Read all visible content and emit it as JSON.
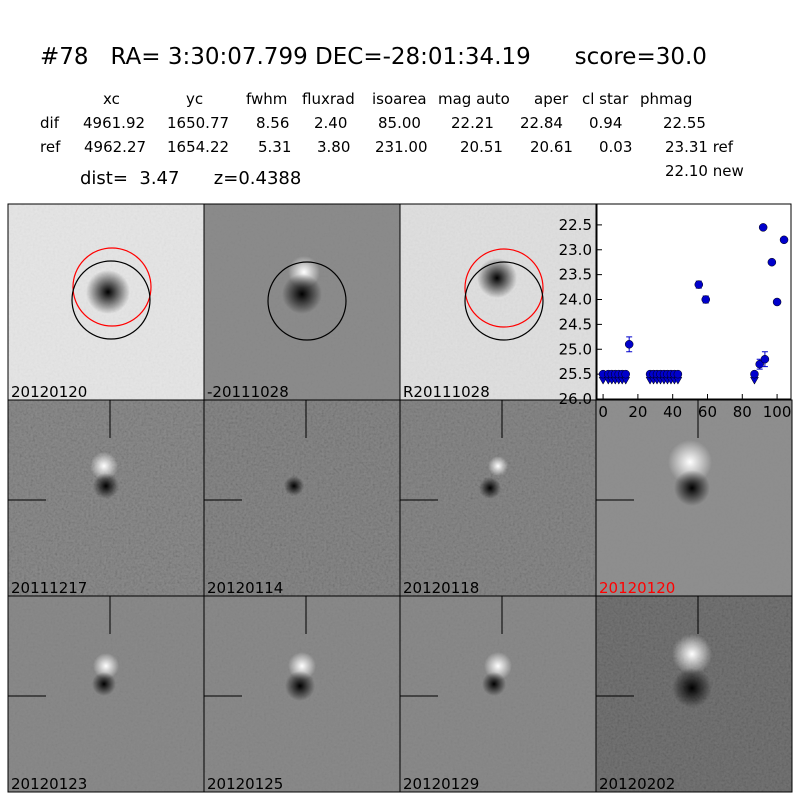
{
  "header": {
    "title": "#78   RA= 3:30:07.799 DEC=-28:01:34.19      score=30.0"
  },
  "table": {
    "columns": [
      "xc",
      "yc",
      "fwhm",
      "fluxrad",
      "isoarea",
      "mag auto",
      "aper",
      "cl star",
      "phmag"
    ],
    "rows": [
      {
        "label": "dif",
        "cells": [
          "4961.92",
          "1650.77",
          "8.56",
          "2.40",
          "85.00",
          "22.21",
          "22.84",
          "0.94",
          "22.55"
        ]
      },
      {
        "label": "ref",
        "cells": [
          "4962.27",
          "1654.22",
          "5.31",
          "3.80",
          "231.00",
          "20.51",
          "20.61",
          "0.03",
          "23.31 ref"
        ]
      }
    ],
    "note": "22.10 new"
  },
  "summary": "dist=  3.47      z=0.4388",
  "panels": [
    {
      "label": "20120120"
    },
    {
      "label": "-20111028"
    },
    {
      "label": "R20111028"
    },
    {
      "label": "20111217"
    },
    {
      "label": "20120114"
    },
    {
      "label": "20120118"
    },
    {
      "label": "20120120",
      "color": "#ff0000"
    },
    {
      "label": "20120123"
    },
    {
      "label": "20120125"
    },
    {
      "label": "20120129"
    },
    {
      "label": "20120202"
    }
  ],
  "chart_data": {
    "type": "scatter",
    "xlim": [
      -3.5,
      108
    ],
    "ylim": [
      22.08,
      26.0
    ],
    "y_inverted": true,
    "xticks": [
      0,
      20,
      40,
      60,
      80,
      100
    ],
    "yticks": [
      22.5,
      {
        "value": 23,
        "label": "23.0"
      },
      23.5,
      {
        "value": 24,
        "label": "24.0"
      },
      24.5,
      {
        "value": 25,
        "label": "25.0"
      },
      25.5,
      {
        "value": 26,
        "label": "26.0"
      }
    ],
    "series": [
      {
        "color": "#0000cc",
        "marker": "point",
        "x": [
          15,
          55,
          59,
          90,
          92,
          93,
          97,
          100,
          104
        ],
        "values": [
          24.9,
          23.7,
          24.0,
          25.3,
          22.55,
          25.2,
          23.25,
          24.05,
          22.8
        ],
        "errors": [
          0.15,
          0.07,
          0.07,
          0.1,
          0.03,
          0.15,
          0.03,
          0.05,
          0.03
        ]
      },
      {
        "color": "#0000cc",
        "marker": "limit",
        "x": [
          0,
          3,
          5,
          7,
          9,
          11,
          13,
          27,
          29,
          31,
          33,
          35,
          37,
          39,
          41,
          43,
          87
        ],
        "values": [
          25.5,
          25.5,
          25.5,
          25.5,
          25.5,
          25.5,
          25.5,
          25.5,
          25.5,
          25.5,
          25.5,
          25.5,
          25.5,
          25.5,
          25.5,
          25.5,
          25.5
        ]
      }
    ]
  }
}
